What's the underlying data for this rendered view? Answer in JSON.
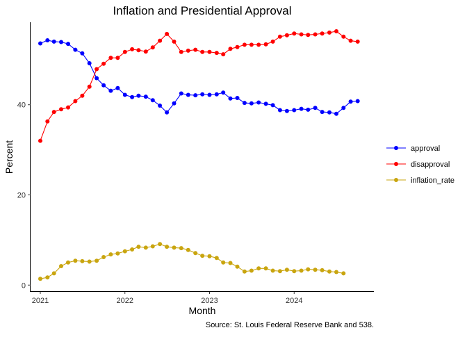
{
  "chart_data": {
    "type": "line",
    "title": "Inflation and Presidential Approval",
    "xlabel": "Month",
    "ylabel": "Percent",
    "caption": "Source: St. Louis Federal Reserve Bank and 538.",
    "x_ticks": [
      "2021",
      "2022",
      "2023",
      "2024"
    ],
    "y_ticks": [
      "0",
      "20",
      "40"
    ],
    "xlim": [
      "2020-11-20",
      "2024-12-10"
    ],
    "ylim": [
      -1.5,
      58.3
    ],
    "grid": false,
    "legend_position": "right",
    "series": [
      {
        "name": "approval",
        "color": "#0000ff",
        "x": [
          "2021-01-01",
          "2021-02-01",
          "2021-03-01",
          "2021-04-01",
          "2021-05-01",
          "2021-06-01",
          "2021-07-01",
          "2021-08-01",
          "2021-09-01",
          "2021-10-01",
          "2021-11-01",
          "2021-12-01",
          "2022-01-01",
          "2022-02-01",
          "2022-03-01",
          "2022-04-01",
          "2022-05-01",
          "2022-06-01",
          "2022-07-01",
          "2022-08-01",
          "2022-09-01",
          "2022-10-01",
          "2022-11-01",
          "2022-12-01",
          "2023-01-01",
          "2023-02-01",
          "2023-03-01",
          "2023-04-01",
          "2023-05-01",
          "2023-06-01",
          "2023-07-01",
          "2023-08-01",
          "2023-09-01",
          "2023-10-01",
          "2023-11-01",
          "2023-12-01",
          "2024-01-01",
          "2024-02-01",
          "2024-03-01",
          "2024-04-01",
          "2024-05-01",
          "2024-06-01",
          "2024-07-01",
          "2024-08-01",
          "2024-09-01",
          "2024-10-01"
        ],
        "values": [
          53.6,
          54.3,
          54.0,
          53.9,
          53.5,
          52.2,
          51.4,
          49.2,
          45.9,
          44.3,
          43.1,
          43.7,
          42.2,
          41.7,
          42.0,
          41.8,
          41.0,
          39.8,
          38.3,
          40.3,
          42.5,
          42.2,
          42.1,
          42.3,
          42.2,
          42.3,
          42.7,
          41.4,
          41.5,
          40.4,
          40.3,
          40.5,
          40.2,
          39.9,
          38.8,
          38.6,
          38.8,
          39.1,
          38.9,
          39.3,
          38.4,
          38.3,
          38.0,
          39.3,
          40.7,
          40.8
        ]
      },
      {
        "name": "disapproval",
        "color": "#ff0000",
        "x": [
          "2021-01-01",
          "2021-02-01",
          "2021-03-01",
          "2021-04-01",
          "2021-05-01",
          "2021-06-01",
          "2021-07-01",
          "2021-08-01",
          "2021-09-01",
          "2021-10-01",
          "2021-11-01",
          "2021-12-01",
          "2022-01-01",
          "2022-02-01",
          "2022-03-01",
          "2022-04-01",
          "2022-05-01",
          "2022-06-01",
          "2022-07-01",
          "2022-08-01",
          "2022-09-01",
          "2022-10-01",
          "2022-11-01",
          "2022-12-01",
          "2023-01-01",
          "2023-02-01",
          "2023-03-01",
          "2023-04-01",
          "2023-05-01",
          "2023-06-01",
          "2023-07-01",
          "2023-08-01",
          "2023-09-01",
          "2023-10-01",
          "2023-11-01",
          "2023-12-01",
          "2024-01-01",
          "2024-02-01",
          "2024-03-01",
          "2024-04-01",
          "2024-05-01",
          "2024-06-01",
          "2024-07-01",
          "2024-08-01",
          "2024-09-01",
          "2024-10-01"
        ],
        "values": [
          32.0,
          36.3,
          38.4,
          39.0,
          39.4,
          40.8,
          42.0,
          44.0,
          47.9,
          49.1,
          50.4,
          50.4,
          51.7,
          52.3,
          52.1,
          51.8,
          52.7,
          54.2,
          55.7,
          54.0,
          51.7,
          52.0,
          52.2,
          51.7,
          51.7,
          51.5,
          51.2,
          52.4,
          52.8,
          53.3,
          53.3,
          53.3,
          53.4,
          54.0,
          55.1,
          55.4,
          55.8,
          55.6,
          55.5,
          55.6,
          55.8,
          56.0,
          56.3,
          55.1,
          54.2,
          54.0
        ]
      },
      {
        "name": "inflation_rate",
        "color": "#c9a50f",
        "x": [
          "2021-01-01",
          "2021-02-01",
          "2021-03-01",
          "2021-04-01",
          "2021-05-01",
          "2021-06-01",
          "2021-07-01",
          "2021-08-01",
          "2021-09-01",
          "2021-10-01",
          "2021-11-01",
          "2021-12-01",
          "2022-01-01",
          "2022-02-01",
          "2022-03-01",
          "2022-04-01",
          "2022-05-01",
          "2022-06-01",
          "2022-07-01",
          "2022-08-01",
          "2022-09-01",
          "2022-10-01",
          "2022-11-01",
          "2022-12-01",
          "2023-01-01",
          "2023-02-01",
          "2023-03-01",
          "2023-04-01",
          "2023-05-01",
          "2023-06-01",
          "2023-07-01",
          "2023-08-01",
          "2023-09-01",
          "2023-10-01",
          "2023-11-01",
          "2023-12-01",
          "2024-01-01",
          "2024-02-01",
          "2024-03-01",
          "2024-04-01",
          "2024-05-01",
          "2024-06-01",
          "2024-07-01",
          "2024-08-01"
        ],
        "values": [
          1.4,
          1.7,
          2.6,
          4.2,
          5.0,
          5.4,
          5.3,
          5.2,
          5.4,
          6.2,
          6.8,
          7.0,
          7.5,
          7.9,
          8.5,
          8.3,
          8.6,
          9.1,
          8.5,
          8.3,
          8.2,
          7.8,
          7.1,
          6.5,
          6.4,
          6.0,
          5.0,
          4.9,
          4.1,
          3.0,
          3.2,
          3.7,
          3.7,
          3.2,
          3.1,
          3.4,
          3.1,
          3.2,
          3.5,
          3.4,
          3.3,
          3.0,
          2.9,
          2.6
        ]
      }
    ]
  }
}
